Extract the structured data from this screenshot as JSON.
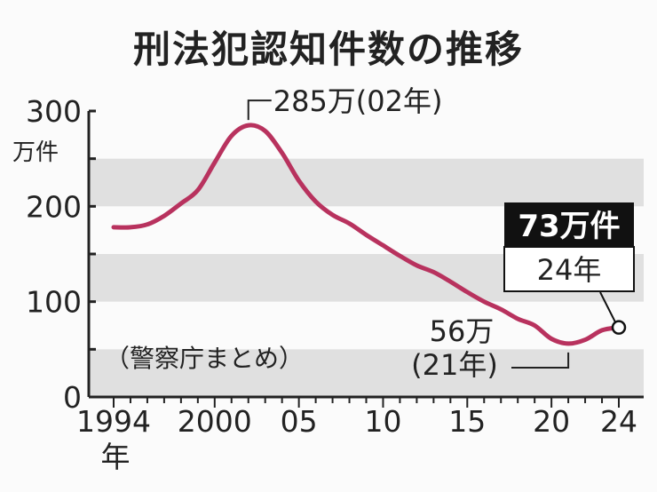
{
  "title": "刑法犯認知件数の推移",
  "source_note": "（警察庁まとめ）",
  "chart_data": {
    "type": "line",
    "title": "刑法犯認知件数の推移",
    "y_unit": "万件",
    "x_unit": "年",
    "ylim": [
      0,
      300
    ],
    "yticks": [
      "0",
      "100",
      "200",
      "300"
    ],
    "xtick_labels": [
      {
        "x": 1994,
        "label": "1994"
      },
      {
        "x": 2000,
        "label": "2000"
      },
      {
        "x": 2005,
        "label": "05"
      },
      {
        "x": 2010,
        "label": "10"
      },
      {
        "x": 2015,
        "label": "15"
      },
      {
        "x": 2020,
        "label": "20"
      },
      {
        "x": 2024,
        "label": "24"
      }
    ],
    "xlim": [
      1993,
      2025
    ],
    "band_color": "#e0e0e0",
    "line_color": "#b8325e",
    "series": [
      {
        "x": [
          1994,
          1995,
          1996,
          1997,
          1998,
          1999,
          2000,
          2001,
          2002,
          2003,
          2004,
          2005,
          2006,
          2007,
          2008,
          2009,
          2010,
          2011,
          2012,
          2013,
          2014,
          2015,
          2016,
          2017,
          2018,
          2019,
          2020,
          2021,
          2022,
          2023,
          2024
        ],
        "values": [
          178,
          178,
          181,
          190,
          203,
          217,
          246,
          274,
          285,
          279,
          256,
          227,
          205,
          191,
          182,
          170,
          159,
          148,
          138,
          131,
          121,
          110,
          100,
          92,
          82,
          75,
          61,
          56,
          60,
          70,
          73
        ]
      }
    ],
    "annotations": {
      "peak": {
        "x": 2002,
        "value": 285,
        "label": "285万(02年)"
      },
      "min": {
        "x": 2021,
        "value": 56,
        "label_value": "56万",
        "label_year": "(21年)"
      },
      "latest": {
        "x": 2024,
        "value": 73,
        "label_value": "73万件",
        "label_year": "24年"
      }
    }
  }
}
